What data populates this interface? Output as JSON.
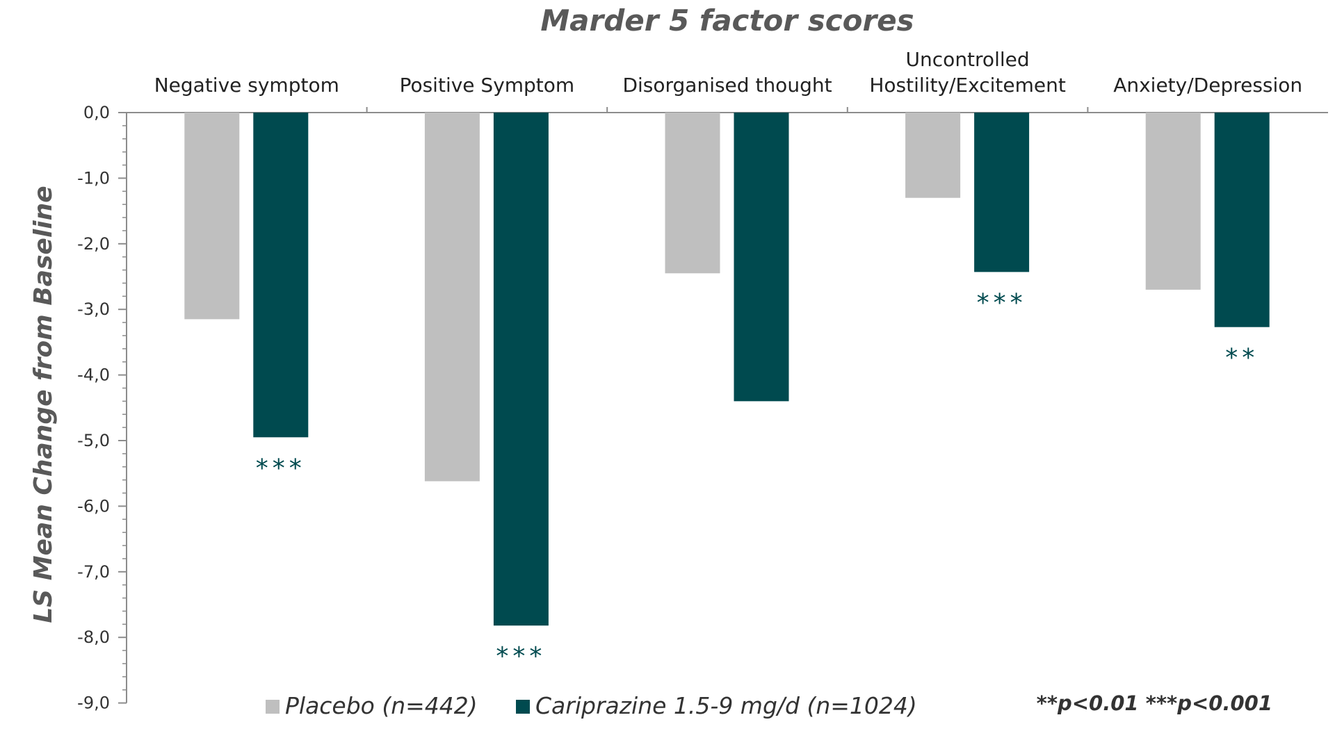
{
  "chart_data": {
    "type": "bar",
    "title": "Marder 5 factor scores",
    "xlabel": "",
    "ylabel": "LS Mean Change from Baseline",
    "ylim": [
      -9.0,
      0.0
    ],
    "y_ticks": [
      "0,0",
      "-1,0",
      "-2,0",
      "-3,0",
      "-4,0",
      "-5,0",
      "-6,0",
      "-7,0",
      "-8,0",
      "-9,0"
    ],
    "y_tick_values": [
      0,
      -1,
      -2,
      -3,
      -4,
      -5,
      -6,
      -7,
      -8,
      -9
    ],
    "x_axis_position": "top",
    "grid": false,
    "legend_position": "bottom",
    "categories": [
      "Negative symptom",
      "Positive Symptom",
      "Disorganised thought",
      "Uncontrolled Hostility/Excitement",
      "Anxiety/Depression"
    ],
    "category_lines": [
      [
        "Negative symptom"
      ],
      [
        "Positive Symptom"
      ],
      [
        "Disorganised thought"
      ],
      [
        "Uncontrolled",
        "Hostility/Excitement"
      ],
      [
        "Anxiety/Depression"
      ]
    ],
    "series": [
      {
        "name": "Placebo (n=442)",
        "color": "#bfbfbf",
        "values": [
          -3.15,
          -5.62,
          -2.45,
          -1.3,
          -2.7
        ],
        "annotations": [
          "",
          "",
          "",
          "",
          ""
        ]
      },
      {
        "name": "Cariprazine 1.5-9 mg/d (n=1024)",
        "color": "#004a4f",
        "values": [
          -4.95,
          -7.82,
          -4.4,
          -2.43,
          -3.27
        ],
        "annotations": [
          "***",
          "***",
          "",
          "***",
          "**"
        ]
      }
    ],
    "footnote": "**p<0.01 ***p<0.001"
  }
}
